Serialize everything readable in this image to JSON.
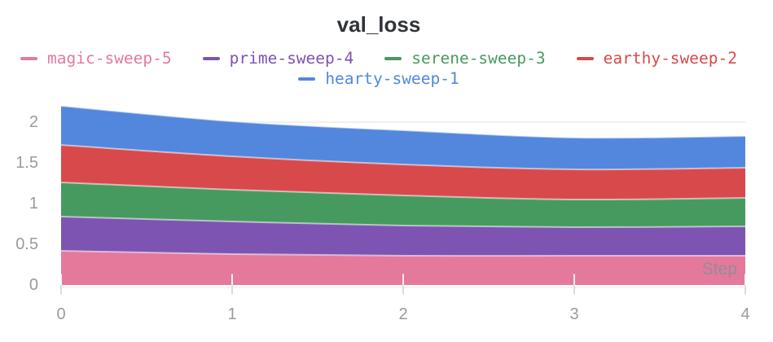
{
  "chart_data": {
    "type": "area",
    "stacked": true,
    "title": "val_loss",
    "xlabel": "Step",
    "ylabel": "",
    "x": [
      0,
      1,
      2,
      3,
      4
    ],
    "series": [
      {
        "name": "magic-sweep-5",
        "color": "#E4799C",
        "values": [
          0.42,
          0.38,
          0.36,
          0.36,
          0.36
        ]
      },
      {
        "name": "prime-sweep-4",
        "color": "#7D54B2",
        "values": [
          0.42,
          0.4,
          0.37,
          0.35,
          0.36
        ]
      },
      {
        "name": "serene-sweep-3",
        "color": "#479A5F",
        "values": [
          0.42,
          0.39,
          0.37,
          0.34,
          0.35
        ]
      },
      {
        "name": "earthy-sweep-2",
        "color": "#D8494B",
        "values": [
          0.46,
          0.41,
          0.38,
          0.37,
          0.37
        ]
      },
      {
        "name": "hearty-sweep-1",
        "color": "#5387DD",
        "values": [
          0.48,
          0.43,
          0.42,
          0.39,
          0.39
        ]
      }
    ],
    "stack_order_bottom_to_top": [
      "magic-sweep-5",
      "prime-sweep-4",
      "serene-sweep-3",
      "earthy-sweep-2",
      "hearty-sweep-1"
    ],
    "legend_rows": [
      [
        0,
        1,
        2,
        3
      ],
      [
        4
      ]
    ],
    "legend_position": "top",
    "x_ticks": [
      "0",
      "1",
      "2",
      "3",
      "4"
    ],
    "x_tick_values": [
      0,
      1,
      2,
      3,
      4
    ],
    "y_ticks": [
      "0",
      "0.5",
      "1",
      "1.5",
      "2"
    ],
    "y_tick_values": [
      0,
      0.5,
      1,
      1.5,
      2
    ],
    "xlim": [
      0,
      4
    ],
    "ylim": [
      0,
      2.35
    ],
    "grid": "horizontal-sparse"
  },
  "colors": {
    "background": "#FFFFFF",
    "title_text": "#2F3437",
    "axis_label_text": "#9A9AA0",
    "step_label_text": "#8F8F96",
    "tick_mark": "#DCDCDC",
    "gridline": "#EBEBEB",
    "area_edge_highlight": "rgba(255,255,255,0.55)"
  }
}
